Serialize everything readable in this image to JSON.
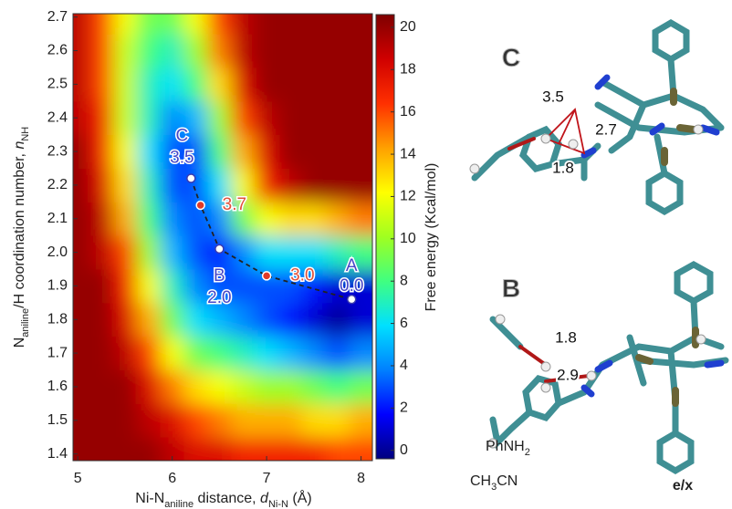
{
  "chart_data": {
    "type": "heatmap",
    "xlabel_parts": [
      "Ni-N",
      "aniline",
      " distance, ",
      "d",
      "Ni-N",
      " (Å)"
    ],
    "ylabel_parts": [
      "N",
      "aniline",
      "/H coordination number, ",
      "n",
      "NH"
    ],
    "colorbar_label": "Free energy (Kcal/mol)",
    "xlim": [
      4.95,
      8.12
    ],
    "ylim": [
      1.38,
      2.71
    ],
    "xticks": [
      5,
      6,
      7,
      8
    ],
    "yticks": [
      1.4,
      1.5,
      1.6,
      1.7,
      1.8,
      1.9,
      {
        "value": 2,
        "label": "2.0"
      },
      2.1,
      2.2,
      2.3,
      2.4,
      2.5,
      2.6,
      2.7
    ],
    "clim": [
      -0.4,
      20.6
    ],
    "cticks": [
      0,
      2,
      4,
      6,
      8,
      10,
      12,
      14,
      16,
      18,
      20
    ],
    "colormap": [
      "#00007f",
      "#0000ff",
      "#0080ff",
      "#00e0ff",
      "#40ff80",
      "#a0ff20",
      "#ffff00",
      "#ffa000",
      "#ff3000",
      "#d00000",
      "#7f0000"
    ],
    "x": [
      5,
      5.25,
      5.5,
      5.75,
      6,
      6.25,
      6.5,
      6.75,
      7,
      7.25,
      7.5,
      7.75,
      8
    ],
    "y": [
      1.4,
      1.5,
      1.6,
      1.7,
      1.8,
      1.9,
      2.0,
      2.1,
      2.2,
      2.3,
      2.4,
      2.5,
      2.6,
      2.7
    ],
    "z": [
      [
        20,
        20,
        20,
        20,
        19,
        18,
        18,
        17,
        17,
        17,
        17,
        16,
        16
      ],
      [
        20,
        20,
        20,
        19,
        18,
        16,
        15,
        14,
        14,
        14,
        13,
        13,
        14
      ],
      [
        20,
        20,
        20,
        18,
        15,
        13,
        12,
        11,
        10,
        10,
        9,
        8,
        9
      ],
      [
        20,
        20,
        19,
        16,
        12,
        9,
        8,
        7,
        6,
        5,
        4,
        3,
        4
      ],
      [
        20,
        20,
        18,
        14,
        9,
        6,
        5,
        4,
        3,
        2,
        1,
        0,
        1
      ],
      [
        20,
        20,
        17,
        12,
        7,
        4,
        3,
        3,
        3,
        3,
        2,
        1,
        1
      ],
      [
        20,
        19,
        16,
        10,
        5,
        3,
        2,
        4,
        6,
        6,
        6,
        7,
        8
      ],
      [
        20,
        19,
        14,
        8,
        4,
        3,
        4,
        9,
        12,
        13,
        13,
        14,
        15
      ],
      [
        20,
        18,
        13,
        7,
        3,
        3,
        6,
        12,
        17,
        19,
        20,
        20,
        20
      ],
      [
        20,
        17,
        12,
        6,
        3,
        3,
        8,
        14,
        18,
        20,
        20,
        20,
        20
      ],
      [
        19,
        17,
        11,
        7,
        4,
        5,
        10,
        16,
        19,
        20,
        20,
        20,
        20
      ],
      [
        19,
        16,
        11,
        7,
        6,
        8,
        13,
        18,
        20,
        20,
        20,
        20,
        20
      ],
      [
        19,
        16,
        11,
        8,
        7,
        10,
        15,
        19,
        20,
        20,
        20,
        20,
        20
      ],
      [
        19,
        16,
        12,
        9,
        9,
        12,
        16,
        19,
        20,
        20,
        20,
        20,
        20
      ]
    ],
    "path": {
      "x": [
        6.2,
        6.3,
        6.5,
        7.0,
        7.9
      ],
      "y": [
        2.22,
        2.14,
        2.01,
        1.93,
        1.86
      ],
      "names": [
        "C",
        null,
        "B",
        null,
        "A"
      ],
      "energy_labels": [
        "3.5",
        "3.7",
        "2.0",
        "3.0",
        "0.0"
      ],
      "point_colors": [
        "#ffffff",
        "#e03a28",
        "#ffffff",
        "#e03a28",
        "#ffffff"
      ],
      "label_colors": [
        "#4848c8",
        "#e0503a",
        "#4848c8",
        "#e0503a",
        "#4848c8"
      ]
    }
  },
  "structures": [
    {
      "label": "C",
      "distances": [
        "3.5",
        "2.7",
        "1.8"
      ]
    },
    {
      "label": "B",
      "distances": [
        "1.8",
        "2.9"
      ],
      "molecules": [
        [
          "PhNH",
          "2"
        ],
        [
          "CH",
          "3",
          "CN"
        ]
      ]
    }
  ],
  "footer": "e/x"
}
